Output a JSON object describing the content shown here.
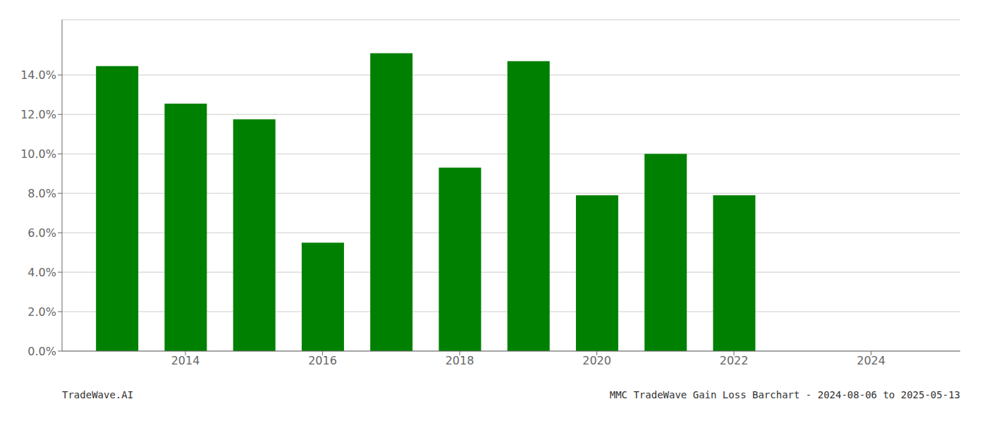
{
  "chart_data": {
    "type": "bar",
    "x": [
      2013,
      2014,
      2015,
      2016,
      2017,
      2018,
      2019,
      2020,
      2021,
      2022
    ],
    "values": [
      0.1445,
      0.1255,
      0.1175,
      0.055,
      0.151,
      0.093,
      0.147,
      0.079,
      0.1,
      0.079
    ],
    "color": "#008000",
    "xlim": [
      2012.2,
      2025.3
    ],
    "xticks": [
      2014,
      2016,
      2018,
      2020,
      2022,
      2024
    ],
    "ylim": [
      0,
      0.168
    ],
    "yticks": [
      {
        "value": 0.0,
        "label": "0.0%"
      },
      {
        "value": 0.02,
        "label": "2.0%"
      },
      {
        "value": 0.04,
        "label": "4.0%"
      },
      {
        "value": 0.06,
        "label": "6.0%"
      },
      {
        "value": 0.08,
        "label": "8.0%"
      },
      {
        "value": 0.1,
        "label": "10.0%"
      },
      {
        "value": 0.12,
        "label": "12.0%"
      },
      {
        "value": 0.14,
        "label": "14.0%"
      }
    ],
    "grid": true,
    "annotations": [
      "TradeWave.AI",
      "MMC TradeWave Gain Loss Barchart - 2024-08-06 to 2025-05-13"
    ]
  }
}
